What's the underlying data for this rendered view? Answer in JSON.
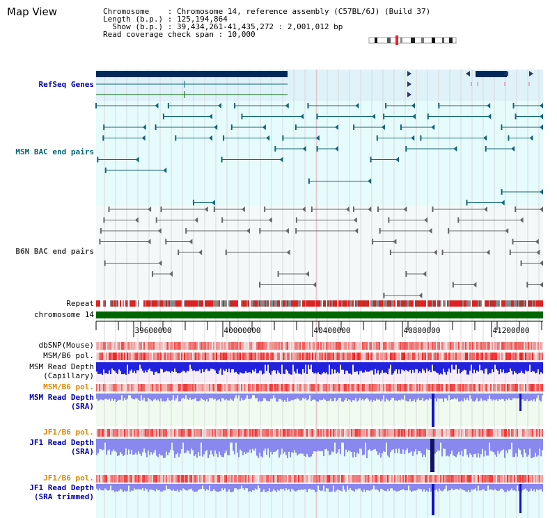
{
  "header": {
    "title": "Map View",
    "chromosome_label": "Chromosome",
    "chromosome_value": "Chromosome 14, reference assembly (C57BL/6J) (Build 37)",
    "length_label": "Length (b.p.)",
    "length_value": "125,194,864",
    "show_label": "Show (b.p.)",
    "show_value": "39,434,261-41,435,272 : 2,001,012 bp",
    "coverage_label": "Read coverage check span",
    "coverage_value": "10,000"
  },
  "tracks": {
    "refseq": "RefSeq Genes",
    "msm_bac": "MSM BAC end pairs",
    "b6n_bac": "B6N BAC end pairs",
    "repeat": "Repeat",
    "chromosome": "chromosome 14",
    "dbsnp": "dbSNP(Mouse)",
    "msm_b6_pol_1": "MSM/B6 pol.",
    "msm_depth_cap_1": "MSM Read Depth",
    "msm_depth_cap_2": "(Capillary)",
    "msm_b6_pol_2": "MSM/B6 pol.",
    "msm_depth_sra_1": "MSM Read Depth",
    "msm_depth_sra_2": "(SRA)",
    "jf1_b6_pol_1": "JF1/B6 pol.",
    "jf1_depth_sra_1": "JF1 Read Depth",
    "jf1_depth_sra_2": "(SRA)",
    "jf1_b6_pol_2": "JF1/B6 pol.",
    "jf1_depth_trim_1": "JF1 Read Depth",
    "jf1_depth_trim_2": "(SRA trimmed)"
  },
  "axis": {
    "ticks": [
      "39600000",
      "40000000",
      "40400000",
      "40800000",
      "41200000"
    ]
  },
  "colors": {
    "refseq_bg": "#dff2fa",
    "msm_bg": "#e6fbfb",
    "b6n_bg": "#f4f8f8",
    "gene_bar": "#002a5c",
    "chromosome_bar": "#006600",
    "depth_blue": "#2222dd",
    "depth_light": "#8888ee",
    "pol_red": "#ee4444"
  }
}
